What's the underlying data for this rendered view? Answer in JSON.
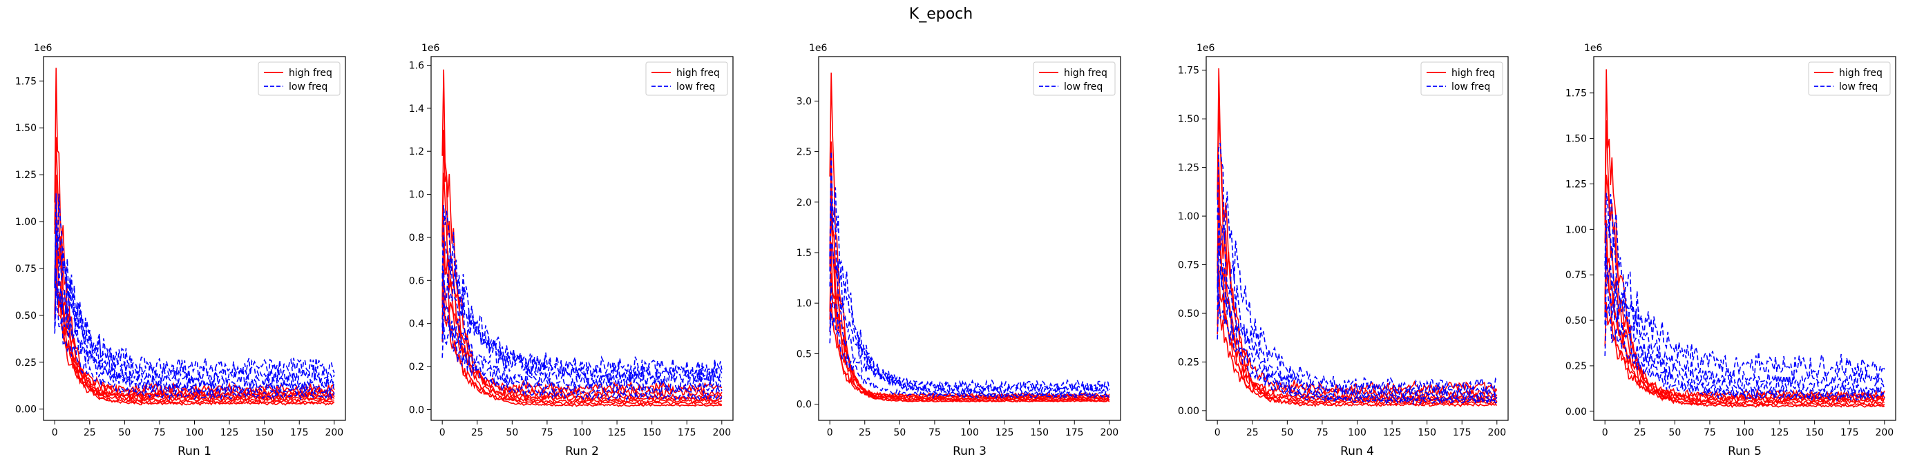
{
  "figure": {
    "suptitle": "K_epoch"
  },
  "chart_data": [
    {
      "type": "line",
      "xlabel": "Run 1",
      "y_offset_label": "1e6",
      "xlim": [
        -8,
        208
      ],
      "ylim": [
        -0.06,
        1.88
      ],
      "xticks": [
        0,
        25,
        50,
        75,
        100,
        125,
        150,
        175,
        200
      ],
      "yticks": [
        0.0,
        0.25,
        0.5,
        0.75,
        1.0,
        1.25,
        1.5,
        1.75
      ],
      "ytick_labels": [
        "0.00",
        "0.25",
        "0.50",
        "0.75",
        "1.00",
        "1.25",
        "1.50",
        "1.75"
      ],
      "legend": {
        "position": "top-right",
        "entries": [
          {
            "label": "high freq",
            "color": "#ff0000",
            "style": "solid"
          },
          {
            "label": "low freq",
            "color": "#0000ff",
            "style": "dashed"
          }
        ]
      },
      "series": [
        {
          "group": "high freq",
          "color": "#ff0000",
          "style": "solid",
          "peak": 1.82,
          "tail": 0.03
        },
        {
          "group": "high freq",
          "color": "#ff0000",
          "style": "solid",
          "peak": 1.45,
          "tail": 0.05
        },
        {
          "group": "high freq",
          "color": "#ff0000",
          "style": "solid",
          "peak": 1.25,
          "tail": 0.07
        },
        {
          "group": "high freq",
          "color": "#ff0000",
          "style": "solid",
          "peak": 1.1,
          "tail": 0.09
        },
        {
          "group": "high freq",
          "color": "#ff0000",
          "style": "solid",
          "peak": 0.95,
          "tail": 0.04
        },
        {
          "group": "high freq",
          "color": "#ff0000",
          "style": "solid",
          "peak": 0.85,
          "tail": 0.11
        },
        {
          "group": "high freq",
          "color": "#ff0000",
          "style": "solid",
          "peak": 0.8,
          "tail": 0.06
        },
        {
          "group": "high freq",
          "color": "#ff0000",
          "style": "solid",
          "peak": 0.7,
          "tail": 0.08
        },
        {
          "group": "low freq",
          "color": "#0000ff",
          "style": "dashed",
          "peak": 1.15,
          "tail": 0.1
        },
        {
          "group": "low freq",
          "color": "#0000ff",
          "style": "dashed",
          "peak": 1.0,
          "tail": 0.18
        },
        {
          "group": "low freq",
          "color": "#0000ff",
          "style": "dashed",
          "peak": 0.9,
          "tail": 0.22
        },
        {
          "group": "low freq",
          "color": "#0000ff",
          "style": "dashed",
          "peak": 0.75,
          "tail": 0.12
        },
        {
          "group": "low freq",
          "color": "#0000ff",
          "style": "dashed",
          "peak": 0.65,
          "tail": 0.15
        },
        {
          "group": "low freq",
          "color": "#0000ff",
          "style": "dashed",
          "peak": 0.55,
          "tail": 0.07
        }
      ]
    },
    {
      "type": "line",
      "xlabel": "Run 2",
      "y_offset_label": "1e6",
      "xlim": [
        -8,
        208
      ],
      "ylim": [
        -0.05,
        1.64
      ],
      "xticks": [
        0,
        25,
        50,
        75,
        100,
        125,
        150,
        175,
        200
      ],
      "yticks": [
        0.0,
        0.2,
        0.4,
        0.6,
        0.8,
        1.0,
        1.2,
        1.4,
        1.6
      ],
      "ytick_labels": [
        "0.0",
        "0.2",
        "0.4",
        "0.6",
        "0.8",
        "1.0",
        "1.2",
        "1.4",
        "1.6"
      ],
      "legend": {
        "position": "top-right",
        "entries": [
          {
            "label": "high freq",
            "color": "#ff0000",
            "style": "solid"
          },
          {
            "label": "low freq",
            "color": "#0000ff",
            "style": "dashed"
          }
        ]
      },
      "series": [
        {
          "group": "high freq",
          "color": "#ff0000",
          "style": "solid",
          "peak": 1.58,
          "tail": 0.03
        },
        {
          "group": "high freq",
          "color": "#ff0000",
          "style": "solid",
          "peak": 1.3,
          "tail": 0.05
        },
        {
          "group": "high freq",
          "color": "#ff0000",
          "style": "solid",
          "peak": 1.1,
          "tail": 0.02
        },
        {
          "group": "high freq",
          "color": "#ff0000",
          "style": "solid",
          "peak": 0.9,
          "tail": 0.08
        },
        {
          "group": "high freq",
          "color": "#ff0000",
          "style": "solid",
          "peak": 0.75,
          "tail": 0.1
        },
        {
          "group": "high freq",
          "color": "#ff0000",
          "style": "solid",
          "peak": 0.6,
          "tail": 0.04
        },
        {
          "group": "high freq",
          "color": "#ff0000",
          "style": "solid",
          "peak": 0.55,
          "tail": 0.06
        },
        {
          "group": "low freq",
          "color": "#0000ff",
          "style": "dashed",
          "peak": 0.95,
          "tail": 0.17
        },
        {
          "group": "low freq",
          "color": "#0000ff",
          "style": "dashed",
          "peak": 0.8,
          "tail": 0.15
        },
        {
          "group": "low freq",
          "color": "#0000ff",
          "style": "dashed",
          "peak": 0.65,
          "tail": 0.19
        },
        {
          "group": "low freq",
          "color": "#0000ff",
          "style": "dashed",
          "peak": 0.5,
          "tail": 0.12
        },
        {
          "group": "low freq",
          "color": "#0000ff",
          "style": "dashed",
          "peak": 0.45,
          "tail": 0.09
        },
        {
          "group": "low freq",
          "color": "#0000ff",
          "style": "dashed",
          "peak": 0.4,
          "tail": 0.06
        }
      ]
    },
    {
      "type": "line",
      "xlabel": "Run 3",
      "y_offset_label": "1e6",
      "xlim": [
        -8,
        208
      ],
      "ylim": [
        -0.16,
        3.44
      ],
      "xticks": [
        0,
        25,
        50,
        75,
        100,
        125,
        150,
        175,
        200
      ],
      "yticks": [
        0.0,
        0.5,
        1.0,
        1.5,
        2.0,
        2.5,
        3.0
      ],
      "ytick_labels": [
        "0.0",
        "0.5",
        "1.0",
        "1.5",
        "2.0",
        "2.5",
        "3.0"
      ],
      "legend": {
        "position": "top-right",
        "entries": [
          {
            "label": "high freq",
            "color": "#ff0000",
            "style": "solid"
          },
          {
            "label": "low freq",
            "color": "#0000ff",
            "style": "dashed"
          }
        ]
      },
      "series": [
        {
          "group": "high freq",
          "color": "#ff0000",
          "style": "solid",
          "peak": 3.28,
          "tail": 0.03
        },
        {
          "group": "high freq",
          "color": "#ff0000",
          "style": "solid",
          "peak": 2.6,
          "tail": 0.05
        },
        {
          "group": "high freq",
          "color": "#ff0000",
          "style": "solid",
          "peak": 2.2,
          "tail": 0.07
        },
        {
          "group": "high freq",
          "color": "#ff0000",
          "style": "solid",
          "peak": 1.9,
          "tail": 0.04
        },
        {
          "group": "high freq",
          "color": "#ff0000",
          "style": "solid",
          "peak": 1.6,
          "tail": 0.09
        },
        {
          "group": "high freq",
          "color": "#ff0000",
          "style": "solid",
          "peak": 1.3,
          "tail": 0.06
        },
        {
          "group": "high freq",
          "color": "#ff0000",
          "style": "solid",
          "peak": 1.0,
          "tail": 0.08
        },
        {
          "group": "low freq",
          "color": "#0000ff",
          "style": "dashed",
          "peak": 2.5,
          "tail": 0.1
        },
        {
          "group": "low freq",
          "color": "#0000ff",
          "style": "dashed",
          "peak": 2.0,
          "tail": 0.13
        },
        {
          "group": "low freq",
          "color": "#0000ff",
          "style": "dashed",
          "peak": 1.6,
          "tail": 0.16
        },
        {
          "group": "low freq",
          "color": "#0000ff",
          "style": "dashed",
          "peak": 1.2,
          "tail": 0.19
        },
        {
          "group": "low freq",
          "color": "#0000ff",
          "style": "dashed",
          "peak": 0.9,
          "tail": 0.08
        }
      ]
    },
    {
      "type": "line",
      "xlabel": "Run 4",
      "y_offset_label": "1e6",
      "xlim": [
        -8,
        208
      ],
      "ylim": [
        -0.05,
        1.82
      ],
      "xticks": [
        0,
        25,
        50,
        75,
        100,
        125,
        150,
        175,
        200
      ],
      "yticks": [
        0.0,
        0.25,
        0.5,
        0.75,
        1.0,
        1.25,
        1.5,
        1.75
      ],
      "ytick_labels": [
        "0.00",
        "0.25",
        "0.50",
        "0.75",
        "1.00",
        "1.25",
        "1.50",
        "1.75"
      ],
      "legend": {
        "position": "top-right",
        "entries": [
          {
            "label": "high freq",
            "color": "#ff0000",
            "style": "solid"
          },
          {
            "label": "low freq",
            "color": "#0000ff",
            "style": "dashed"
          }
        ]
      },
      "series": [
        {
          "group": "high freq",
          "color": "#ff0000",
          "style": "solid",
          "peak": 1.76,
          "tail": 0.03
        },
        {
          "group": "high freq",
          "color": "#ff0000",
          "style": "solid",
          "peak": 1.55,
          "tail": 0.12
        },
        {
          "group": "high freq",
          "color": "#ff0000",
          "style": "solid",
          "peak": 1.3,
          "tail": 0.05
        },
        {
          "group": "high freq",
          "color": "#ff0000",
          "style": "solid",
          "peak": 1.1,
          "tail": 0.07
        },
        {
          "group": "high freq",
          "color": "#ff0000",
          "style": "solid",
          "peak": 0.9,
          "tail": 0.04
        },
        {
          "group": "high freq",
          "color": "#ff0000",
          "style": "solid",
          "peak": 0.75,
          "tail": 0.09
        },
        {
          "group": "high freq",
          "color": "#ff0000",
          "style": "solid",
          "peak": 0.6,
          "tail": 0.06
        },
        {
          "group": "low freq",
          "color": "#0000ff",
          "style": "dashed",
          "peak": 1.35,
          "tail": 0.13
        },
        {
          "group": "low freq",
          "color": "#0000ff",
          "style": "dashed",
          "peak": 1.05,
          "tail": 0.1
        },
        {
          "group": "low freq",
          "color": "#0000ff",
          "style": "dashed",
          "peak": 0.85,
          "tail": 0.08
        },
        {
          "group": "low freq",
          "color": "#0000ff",
          "style": "dashed",
          "peak": 0.7,
          "tail": 0.06
        },
        {
          "group": "low freq",
          "color": "#0000ff",
          "style": "dashed",
          "peak": 0.6,
          "tail": 0.05
        }
      ]
    },
    {
      "type": "line",
      "xlabel": "Run 5",
      "y_offset_label": "1e6",
      "xlim": [
        -8,
        208
      ],
      "ylim": [
        -0.05,
        1.95
      ],
      "xticks": [
        0,
        25,
        50,
        75,
        100,
        125,
        150,
        175,
        200
      ],
      "yticks": [
        0.0,
        0.25,
        0.5,
        0.75,
        1.0,
        1.25,
        1.5,
        1.75
      ],
      "ytick_labels": [
        "0.00",
        "0.25",
        "0.50",
        "0.75",
        "1.00",
        "1.25",
        "1.50",
        "1.75"
      ],
      "legend": {
        "position": "top-right",
        "entries": [
          {
            "label": "high freq",
            "color": "#ff0000",
            "style": "solid"
          },
          {
            "label": "low freq",
            "color": "#0000ff",
            "style": "dashed"
          }
        ]
      },
      "series": [
        {
          "group": "high freq",
          "color": "#ff0000",
          "style": "solid",
          "peak": 1.88,
          "tail": 0.03
        },
        {
          "group": "high freq",
          "color": "#ff0000",
          "style": "solid",
          "peak": 1.6,
          "tail": 0.05
        },
        {
          "group": "high freq",
          "color": "#ff0000",
          "style": "solid",
          "peak": 1.3,
          "tail": 0.07
        },
        {
          "group": "high freq",
          "color": "#ff0000",
          "style": "solid",
          "peak": 1.05,
          "tail": 0.04
        },
        {
          "group": "high freq",
          "color": "#ff0000",
          "style": "solid",
          "peak": 0.9,
          "tail": 0.09
        },
        {
          "group": "high freq",
          "color": "#ff0000",
          "style": "solid",
          "peak": 0.75,
          "tail": 0.06
        },
        {
          "group": "high freq",
          "color": "#ff0000",
          "style": "solid",
          "peak": 0.6,
          "tail": 0.08
        },
        {
          "group": "low freq",
          "color": "#0000ff",
          "style": "dashed",
          "peak": 1.2,
          "tail": 0.24
        },
        {
          "group": "low freq",
          "color": "#0000ff",
          "style": "dashed",
          "peak": 1.0,
          "tail": 0.17
        },
        {
          "group": "low freq",
          "color": "#0000ff",
          "style": "dashed",
          "peak": 0.85,
          "tail": 0.13
        },
        {
          "group": "low freq",
          "color": "#0000ff",
          "style": "dashed",
          "peak": 0.7,
          "tail": 0.1
        },
        {
          "group": "low freq",
          "color": "#0000ff",
          "style": "dashed",
          "peak": 0.55,
          "tail": 0.08
        }
      ]
    }
  ]
}
